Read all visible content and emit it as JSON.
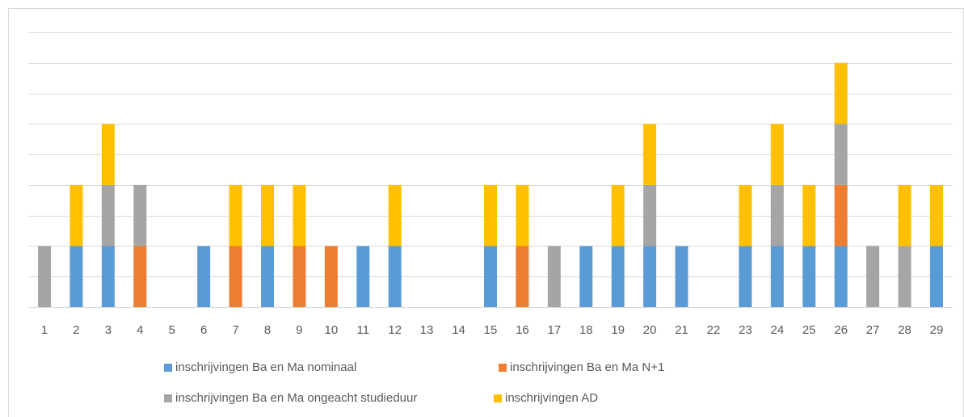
{
  "chart_data": {
    "type": "bar",
    "stacked": true,
    "categories": [
      "1",
      "2",
      "3",
      "4",
      "5",
      "6",
      "7",
      "8",
      "9",
      "10",
      "11",
      "12",
      "13",
      "14",
      "15",
      "16",
      "17",
      "18",
      "19",
      "20",
      "21",
      "22",
      "23",
      "24",
      "25",
      "26",
      "27",
      "28",
      "29"
    ],
    "series": [
      {
        "name": "inschrijvingen Ba en Ma nominaal",
        "color": "#5b9bd5",
        "values": [
          0,
          1,
          1,
          0,
          0,
          1,
          0,
          1,
          0,
          0,
          1,
          1,
          0,
          0,
          1,
          0,
          0,
          1,
          1,
          1,
          1,
          0,
          1,
          1,
          1,
          1,
          0,
          0,
          1
        ]
      },
      {
        "name": "inschrijvingen Ba en Ma N+1",
        "color": "#ed7d31",
        "values": [
          0,
          0,
          0,
          1,
          0,
          0,
          1,
          0,
          1,
          1,
          0,
          0,
          0,
          0,
          0,
          1,
          0,
          0,
          0,
          0,
          0,
          0,
          0,
          0,
          0,
          1,
          0,
          0,
          0
        ]
      },
      {
        "name": "inschrijvingen Ba en Ma ongeacht studieduur",
        "color": "#a5a5a5",
        "values": [
          1,
          0,
          1,
          1,
          0,
          0,
          0,
          0,
          0,
          0,
          0,
          0,
          0,
          0,
          0,
          0,
          1,
          0,
          0,
          1,
          0,
          0,
          0,
          1,
          0,
          1,
          1,
          1,
          0
        ]
      },
      {
        "name": "inschrijvingen AD",
        "color": "#ffc000",
        "values": [
          0,
          1,
          1,
          0,
          0,
          0,
          1,
          1,
          1,
          0,
          0,
          1,
          0,
          0,
          1,
          1,
          0,
          0,
          1,
          1,
          0,
          0,
          1,
          1,
          1,
          1,
          0,
          1,
          1
        ]
      }
    ],
    "ylim": [
      0,
      4.5
    ],
    "yticks": [
      0,
      0.5,
      1,
      1.5,
      2,
      2.5,
      3,
      3.5,
      4,
      4.5
    ],
    "grid": true,
    "legend": "bottom"
  }
}
